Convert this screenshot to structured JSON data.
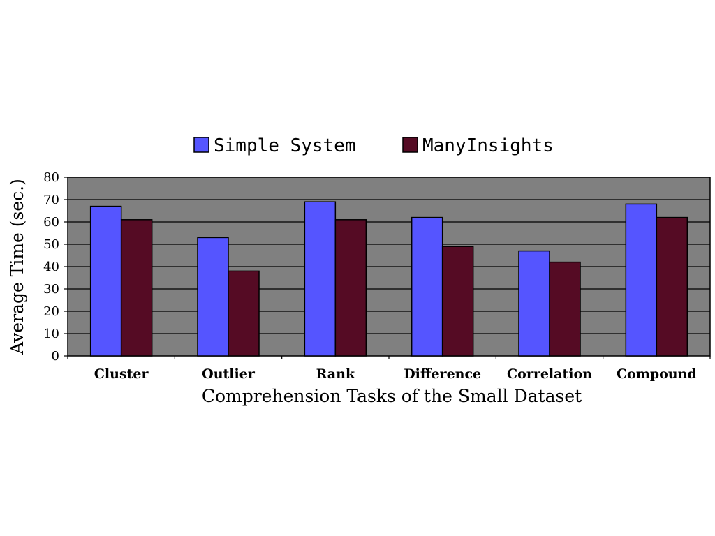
{
  "chart_data": {
    "type": "bar",
    "title": "",
    "xlabel": "Comprehension Tasks of the Small Dataset",
    "ylabel": "Average Time (sec.)",
    "ylim": [
      0,
      80
    ],
    "yticks": [
      0,
      10,
      20,
      30,
      40,
      50,
      60,
      70,
      80
    ],
    "grid": true,
    "legend": "top",
    "categories": [
      "Cluster",
      "Outlier",
      "Rank",
      "Difference",
      "Correlation",
      "Compound"
    ],
    "series": [
      {
        "name": "Simple System",
        "color": "#5555ff",
        "values": [
          67,
          53,
          69,
          62,
          47,
          68
        ]
      },
      {
        "name": "ManyInsights",
        "color": "#550b24",
        "values": [
          61,
          38,
          61,
          49,
          42,
          62
        ]
      }
    ],
    "plot_background": "#808080"
  }
}
